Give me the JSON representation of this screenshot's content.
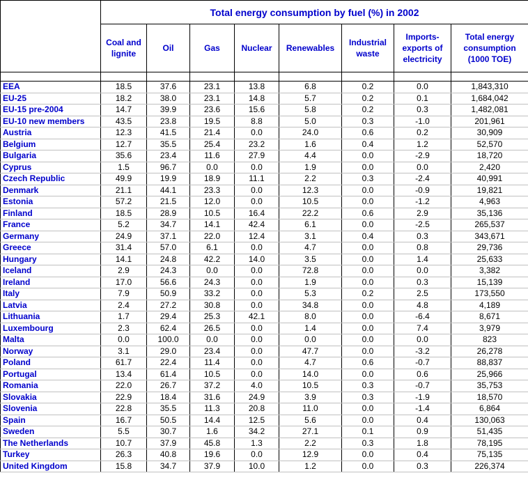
{
  "table": {
    "title": "Total energy consumption by fuel (%) in 2002",
    "columns": [
      "Coal and lignite",
      "Oil",
      "Gas",
      "Nuclear",
      "Renewables",
      "Industrial waste",
      "Imports-exports of electricity",
      "Total energy consumption (1000 TOE)"
    ],
    "rows": [
      {
        "label": "EEA",
        "cells": [
          "18.5",
          "37.6",
          "23.1",
          "13.8",
          "6.8",
          "0.2",
          "0.0",
          "1,843,310"
        ]
      },
      {
        "label": "EU-25",
        "cells": [
          "18.2",
          "38.0",
          "23.1",
          "14.8",
          "5.7",
          "0.2",
          "0.1",
          "1,684,042"
        ]
      },
      {
        "label": "EU-15 pre-2004",
        "cells": [
          "14.7",
          "39.9",
          "23.6",
          "15.6",
          "5.8",
          "0.2",
          "0.3",
          "1,482,081"
        ]
      },
      {
        "label": "EU-10 new members",
        "cells": [
          "43.5",
          "23.8",
          "19.5",
          "8.8",
          "5.0",
          "0.3",
          "-1.0",
          "201,961"
        ]
      },
      {
        "label": "Austria",
        "cells": [
          "12.3",
          "41.5",
          "21.4",
          "0.0",
          "24.0",
          "0.6",
          "0.2",
          "30,909"
        ]
      },
      {
        "label": "Belgium",
        "cells": [
          "12.7",
          "35.5",
          "25.4",
          "23.2",
          "1.6",
          "0.4",
          "1.2",
          "52,570"
        ]
      },
      {
        "label": "Bulgaria",
        "cells": [
          "35.6",
          "23.4",
          "11.6",
          "27.9",
          "4.4",
          "0.0",
          "-2.9",
          "18,720"
        ]
      },
      {
        "label": "Cyprus",
        "cells": [
          "1.5",
          "96.7",
          "0.0",
          "0.0",
          "1.9",
          "0.0",
          "0.0",
          "2,420"
        ]
      },
      {
        "label": "Czech Republic",
        "cells": [
          "49.9",
          "19.9",
          "18.9",
          "11.1",
          "2.2",
          "0.3",
          "-2.4",
          "40,991"
        ]
      },
      {
        "label": "Denmark",
        "cells": [
          "21.1",
          "44.1",
          "23.3",
          "0.0",
          "12.3",
          "0.0",
          "-0.9",
          "19,821"
        ]
      },
      {
        "label": "Estonia",
        "cells": [
          "57.2",
          "21.5",
          "12.0",
          "0.0",
          "10.5",
          "0.0",
          "-1.2",
          "4,963"
        ]
      },
      {
        "label": "Finland",
        "cells": [
          "18.5",
          "28.9",
          "10.5",
          "16.4",
          "22.2",
          "0.6",
          "2.9",
          "35,136"
        ]
      },
      {
        "label": "France",
        "cells": [
          "5.2",
          "34.7",
          "14.1",
          "42.4",
          "6.1",
          "0.0",
          "-2.5",
          "265,537"
        ]
      },
      {
        "label": "Germany",
        "cells": [
          "24.9",
          "37.1",
          "22.0",
          "12.4",
          "3.1",
          "0.4",
          "0.3",
          "343,671"
        ]
      },
      {
        "label": "Greece",
        "cells": [
          "31.4",
          "57.0",
          "6.1",
          "0.0",
          "4.7",
          "0.0",
          "0.8",
          "29,736"
        ]
      },
      {
        "label": "Hungary",
        "cells": [
          "14.1",
          "24.8",
          "42.2",
          "14.0",
          "3.5",
          "0.0",
          "1.4",
          "25,633"
        ]
      },
      {
        "label": "Iceland",
        "cells": [
          "2.9",
          "24.3",
          "0.0",
          "0.0",
          "72.8",
          "0.0",
          "0.0",
          "3,382"
        ]
      },
      {
        "label": "Ireland",
        "cells": [
          "17.0",
          "56.6",
          "24.3",
          "0.0",
          "1.9",
          "0.0",
          "0.3",
          "15,139"
        ]
      },
      {
        "label": "Italy",
        "cells": [
          "7.9",
          "50.9",
          "33.2",
          "0.0",
          "5.3",
          "0.2",
          "2.5",
          "173,550"
        ]
      },
      {
        "label": "Latvia",
        "cells": [
          "2.4",
          "27.2",
          "30.8",
          "0.0",
          "34.8",
          "0.0",
          "4.8",
          "4,189"
        ]
      },
      {
        "label": "Lithuania",
        "cells": [
          "1.7",
          "29.4",
          "25.3",
          "42.1",
          "8.0",
          "0.0",
          "-6.4",
          "8,671"
        ]
      },
      {
        "label": "Luxembourg",
        "cells": [
          "2.3",
          "62.4",
          "26.5",
          "0.0",
          "1.4",
          "0.0",
          "7.4",
          "3,979"
        ]
      },
      {
        "label": "Malta",
        "cells": [
          "0.0",
          "100.0",
          "0.0",
          "0.0",
          "0.0",
          "0.0",
          "0.0",
          "823"
        ]
      },
      {
        "label": "Norway",
        "cells": [
          "3.1",
          "29.0",
          "23.4",
          "0.0",
          "47.7",
          "0.0",
          "-3.2",
          "26,278"
        ]
      },
      {
        "label": "Poland",
        "cells": [
          "61.7",
          "22.4",
          "11.4",
          "0.0",
          "4.7",
          "0.6",
          "-0.7",
          "88,837"
        ]
      },
      {
        "label": "Portugal",
        "cells": [
          "13.4",
          "61.4",
          "10.5",
          "0.0",
          "14.0",
          "0.0",
          "0.6",
          "25,966"
        ]
      },
      {
        "label": "Romania",
        "cells": [
          "22.0",
          "26.7",
          "37.2",
          "4.0",
          "10.5",
          "0.3",
          "-0.7",
          "35,753"
        ]
      },
      {
        "label": "Slovakia",
        "cells": [
          "22.9",
          "18.4",
          "31.6",
          "24.9",
          "3.9",
          "0.3",
          "-1.9",
          "18,570"
        ]
      },
      {
        "label": "Slovenia",
        "cells": [
          "22.8",
          "35.5",
          "11.3",
          "20.8",
          "11.0",
          "0.0",
          "-1.4",
          "6,864"
        ]
      },
      {
        "label": "Spain",
        "cells": [
          "16.7",
          "50.5",
          "14.4",
          "12.5",
          "5.6",
          "0.0",
          "0.4",
          "130,063"
        ]
      },
      {
        "label": "Sweden",
        "cells": [
          "5.5",
          "30.7",
          "1.6",
          "34.2",
          "27.1",
          "0.1",
          "0.9",
          "51,435"
        ]
      },
      {
        "label": "The Netherlands",
        "cells": [
          "10.7",
          "37.9",
          "45.8",
          "1.3",
          "2.2",
          "0.3",
          "1.8",
          "78,195"
        ]
      },
      {
        "label": "Turkey",
        "cells": [
          "26.3",
          "40.8",
          "19.6",
          "0.0",
          "12.9",
          "0.0",
          "0.4",
          "75,135"
        ]
      },
      {
        "label": "United Kingdom",
        "cells": [
          "15.8",
          "34.7",
          "37.9",
          "10.0",
          "1.2",
          "0.0",
          "0.3",
          "226,374"
        ]
      }
    ]
  }
}
